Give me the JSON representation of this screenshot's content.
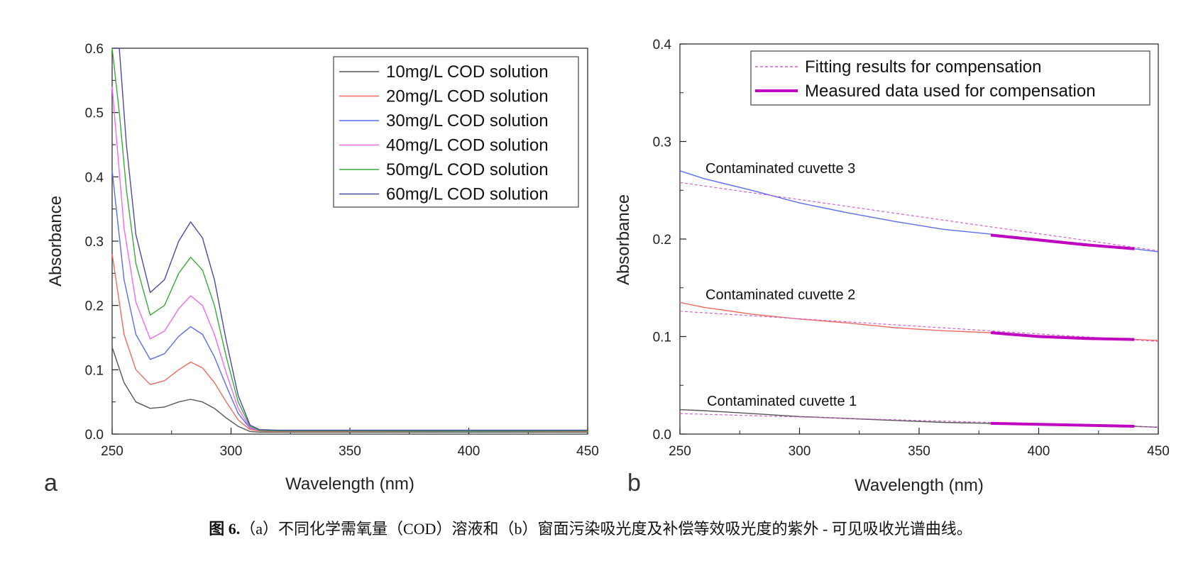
{
  "caption": {
    "label": "图 6.",
    "text": "（a）不同化学需氧量（COD）溶液和（b）窗面污染吸光度及补偿等效吸光度的紫外 - 可见吸收光谱曲线。"
  },
  "colors": {
    "black": "#555555",
    "red": "#f06a5e",
    "blue": "#5a6cf0",
    "magenta": "#f06af0",
    "green": "#3aaa3a",
    "navy": "#4a4aa0",
    "comp": "#c000c0"
  },
  "chart_data": [
    {
      "type": "line",
      "panel": "a",
      "xlabel": "Wavelength (nm)",
      "ylabel": "Absorbance",
      "xlim": [
        250,
        450
      ],
      "ylim": [
        0,
        0.6
      ],
      "xticks": [
        "250",
        "300",
        "350",
        "400",
        "450"
      ],
      "yticks": [
        "0.0",
        "0.1",
        "0.2",
        "0.3",
        "0.4",
        "0.5",
        "0.6"
      ],
      "legend_position": "top-right",
      "series": [
        {
          "name": "10mg/L COD solution",
          "color": "#555555",
          "x": [
            250,
            255,
            260,
            266,
            272,
            278,
            283,
            288,
            293,
            298,
            303,
            308,
            312,
            320,
            350,
            400,
            450
          ],
          "y": [
            0.135,
            0.08,
            0.05,
            0.04,
            0.042,
            0.05,
            0.054,
            0.05,
            0.04,
            0.025,
            0.012,
            0.004,
            0.003,
            0.003,
            0.003,
            0.003,
            0.003
          ]
        },
        {
          "name": "20mg/L COD solution",
          "color": "#f06a5e",
          "x": [
            250,
            255,
            260,
            266,
            272,
            278,
            283,
            288,
            293,
            298,
            303,
            308,
            312,
            320,
            350,
            400,
            450
          ],
          "y": [
            0.28,
            0.155,
            0.1,
            0.077,
            0.083,
            0.1,
            0.112,
            0.103,
            0.08,
            0.05,
            0.022,
            0.007,
            0.005,
            0.004,
            0.004,
            0.005,
            0.004
          ]
        },
        {
          "name": "30mg/L COD solution",
          "color": "#5a6cf0",
          "x": [
            250,
            255,
            260,
            266,
            272,
            278,
            283,
            288,
            293,
            298,
            303,
            308,
            312,
            320,
            350,
            400,
            450
          ],
          "y": [
            0.41,
            0.24,
            0.155,
            0.116,
            0.125,
            0.152,
            0.167,
            0.155,
            0.12,
            0.075,
            0.032,
            0.009,
            0.006,
            0.005,
            0.005,
            0.005,
            0.005
          ]
        },
        {
          "name": "40mg/L COD solution",
          "color": "#f06af0",
          "x": [
            250,
            255,
            260,
            266,
            272,
            278,
            283,
            288,
            293,
            298,
            303,
            308,
            312,
            320,
            350,
            400,
            450
          ],
          "y": [
            0.54,
            0.32,
            0.205,
            0.148,
            0.16,
            0.195,
            0.215,
            0.2,
            0.155,
            0.095,
            0.04,
            0.01,
            0.006,
            0.006,
            0.006,
            0.006,
            0.006
          ]
        },
        {
          "name": "50mg/L COD solution",
          "color": "#3aaa3a",
          "x": [
            250,
            253,
            256,
            260,
            266,
            272,
            278,
            283,
            288,
            293,
            298,
            303,
            308,
            312,
            320,
            350,
            400,
            450
          ],
          "y": [
            0.62,
            0.5,
            0.38,
            0.265,
            0.185,
            0.2,
            0.25,
            0.275,
            0.255,
            0.2,
            0.12,
            0.05,
            0.012,
            0.006,
            0.005,
            0.005,
            0.005,
            0.005
          ]
        },
        {
          "name": "60mg/L COD solution",
          "color": "#4a4aa0",
          "x": [
            251,
            253,
            256,
            260,
            266,
            272,
            278,
            283,
            288,
            293,
            298,
            303,
            308,
            312,
            320,
            350,
            400,
            450
          ],
          "y": [
            0.62,
            0.6,
            0.45,
            0.31,
            0.22,
            0.24,
            0.3,
            0.33,
            0.305,
            0.24,
            0.145,
            0.06,
            0.014,
            0.007,
            0.006,
            0.006,
            0.006,
            0.006
          ]
        }
      ]
    },
    {
      "type": "line",
      "panel": "b",
      "xlabel": "Wavelength (nm)",
      "ylabel": "Absorbance",
      "xlim": [
        250,
        450
      ],
      "ylim": [
        0,
        0.4
      ],
      "xticks": [
        "250",
        "300",
        "350",
        "400",
        "450"
      ],
      "yticks": [
        "0.0",
        "0.1",
        "0.2",
        "0.3",
        "0.4"
      ],
      "legend_position": "top-right",
      "legend": [
        {
          "name": "Fitting results for compensation",
          "style": "dashed"
        },
        {
          "name": "Measured data used for compensation",
          "style": "thick"
        }
      ],
      "annotations": [
        "Contaminated cuvette 3",
        "Contaminated cuvette 2",
        "Contaminated cuvette 1"
      ],
      "series": [
        {
          "name": "Contaminated cuvette 3",
          "color": "#5a6cf0",
          "x": [
            250,
            260,
            280,
            300,
            320,
            340,
            360,
            380,
            400,
            420,
            440,
            450
          ],
          "y": [
            0.27,
            0.262,
            0.25,
            0.237,
            0.227,
            0.218,
            0.21,
            0.205,
            0.2,
            0.195,
            0.19,
            0.187
          ]
        },
        {
          "name": "Contaminated cuvette 3 fit",
          "color": "#d060d0",
          "style": "dashed",
          "x": [
            250,
            450
          ],
          "y": [
            0.258,
            0.188
          ]
        },
        {
          "name": "Contaminated cuvette 3 measured",
          "color": "#c000c0",
          "style": "thick",
          "x": [
            380,
            400,
            420,
            440
          ],
          "y": [
            0.204,
            0.199,
            0.194,
            0.19
          ]
        },
        {
          "name": "Contaminated cuvette 2",
          "color": "#f06a5e",
          "x": [
            250,
            260,
            280,
            300,
            320,
            340,
            360,
            380,
            400,
            420,
            440,
            450
          ],
          "y": [
            0.135,
            0.13,
            0.123,
            0.118,
            0.114,
            0.109,
            0.106,
            0.104,
            0.101,
            0.099,
            0.097,
            0.096
          ]
        },
        {
          "name": "Contaminated cuvette 2 fit",
          "color": "#d060d0",
          "style": "dashed",
          "x": [
            250,
            450
          ],
          "y": [
            0.126,
            0.095
          ]
        },
        {
          "name": "Contaminated cuvette 2 measured",
          "color": "#c000c0",
          "style": "thick",
          "x": [
            380,
            400,
            420,
            440
          ],
          "y": [
            0.104,
            0.1,
            0.098,
            0.097
          ]
        },
        {
          "name": "Contaminated cuvette 1",
          "color": "#555555",
          "x": [
            250,
            260,
            280,
            300,
            320,
            340,
            360,
            380,
            400,
            420,
            440,
            450
          ],
          "y": [
            0.025,
            0.024,
            0.021,
            0.018,
            0.016,
            0.014,
            0.012,
            0.011,
            0.01,
            0.009,
            0.008,
            0.007
          ]
        },
        {
          "name": "Contaminated cuvette 1 fit",
          "color": "#d060d0",
          "style": "dashed",
          "x": [
            250,
            450
          ],
          "y": [
            0.021,
            0.007
          ]
        },
        {
          "name": "Contaminated cuvette 1 measured",
          "color": "#c000c0",
          "style": "thick",
          "x": [
            380,
            400,
            420,
            440
          ],
          "y": [
            0.011,
            0.01,
            0.009,
            0.008
          ]
        }
      ]
    }
  ]
}
